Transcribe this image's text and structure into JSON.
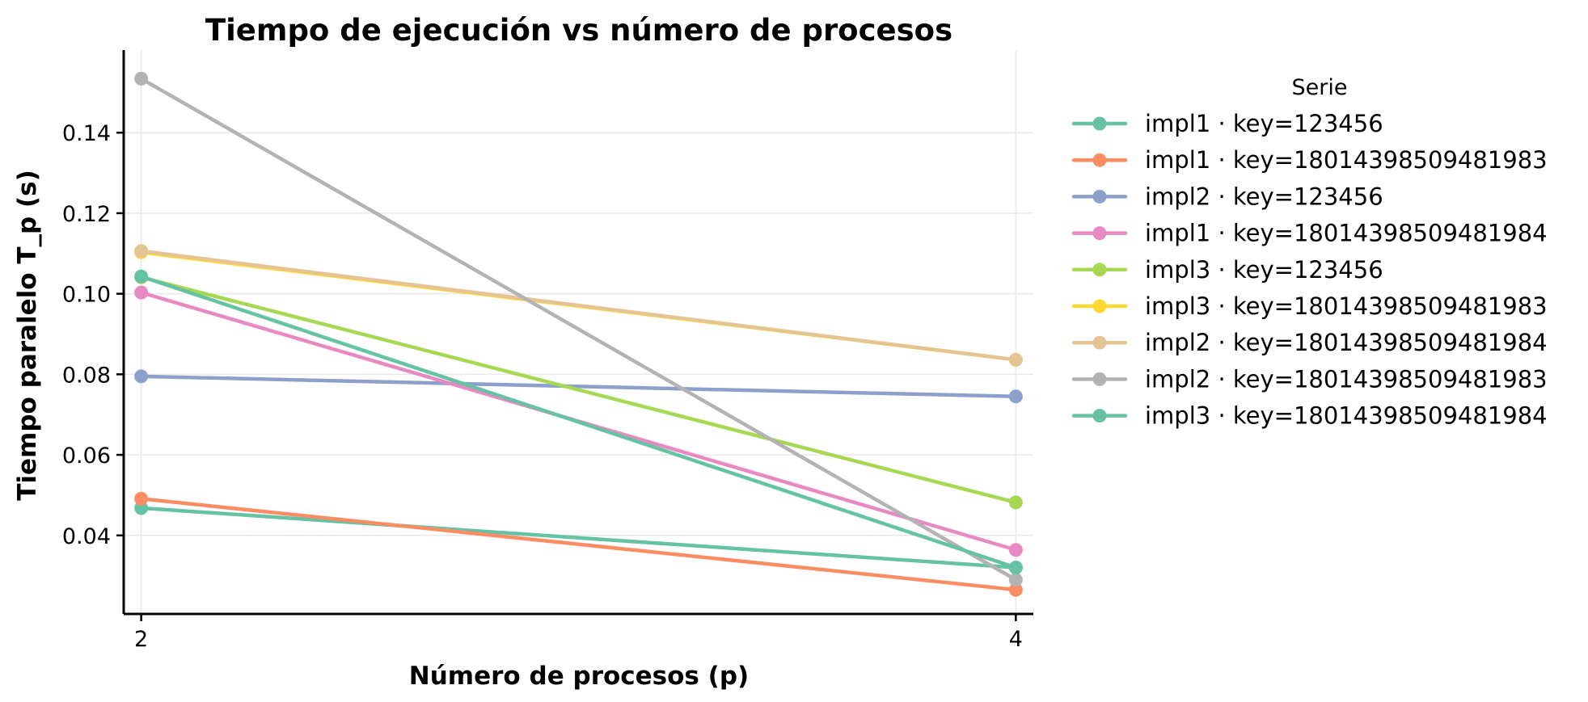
{
  "chart_data": {
    "type": "line",
    "title": "Tiempo de ejecución vs número de procesos",
    "xlabel": "Número de procesos (p)",
    "ylabel": "Tiempo paralelo T_p (s)",
    "x": [
      2,
      4
    ],
    "x_ticks": [
      "2",
      "4"
    ],
    "y_ticks": [
      0.04,
      0.06,
      0.08,
      0.1,
      0.12,
      0.14
    ],
    "y_tick_labels": [
      "0.04",
      "0.06",
      "0.08",
      "0.10",
      "0.12",
      "0.14"
    ],
    "xlim": [
      1.96,
      4.04
    ],
    "ylim": [
      0.0205,
      0.1605
    ],
    "grid": true,
    "legend_title": "Serie",
    "legend_position": "outside right",
    "series": [
      {
        "name": "impl1 · key=123456",
        "color": "#66c2a5",
        "values": [
          0.0468,
          0.032
        ]
      },
      {
        "name": "impl1 · key=18014398509481983",
        "color": "#fc8d62",
        "values": [
          0.0491,
          0.0265
        ]
      },
      {
        "name": "impl2 · key=123456",
        "color": "#8da0cb",
        "values": [
          0.0795,
          0.0745
        ]
      },
      {
        "name": "impl1 · key=18014398509481984",
        "color": "#e78ac3",
        "values": [
          0.1003,
          0.0364
        ]
      },
      {
        "name": "impl3 · key=123456",
        "color": "#a6d854",
        "values": [
          0.1041,
          0.0482
        ]
      },
      {
        "name": "impl3 · key=18014398509481983",
        "color": "#ffd92f",
        "values": [
          0.1103,
          0.0836
        ]
      },
      {
        "name": "impl2 · key=18014398509481984",
        "color": "#e5c494",
        "values": [
          0.1106,
          0.0836
        ]
      },
      {
        "name": "impl2 · key=18014398509481983",
        "color": "#b3b3b3",
        "values": [
          0.1534,
          0.029
        ]
      },
      {
        "name": "impl3 · key=18014398509481984",
        "color": "#66c2a5",
        "values": [
          0.1043,
          0.032
        ]
      }
    ]
  }
}
